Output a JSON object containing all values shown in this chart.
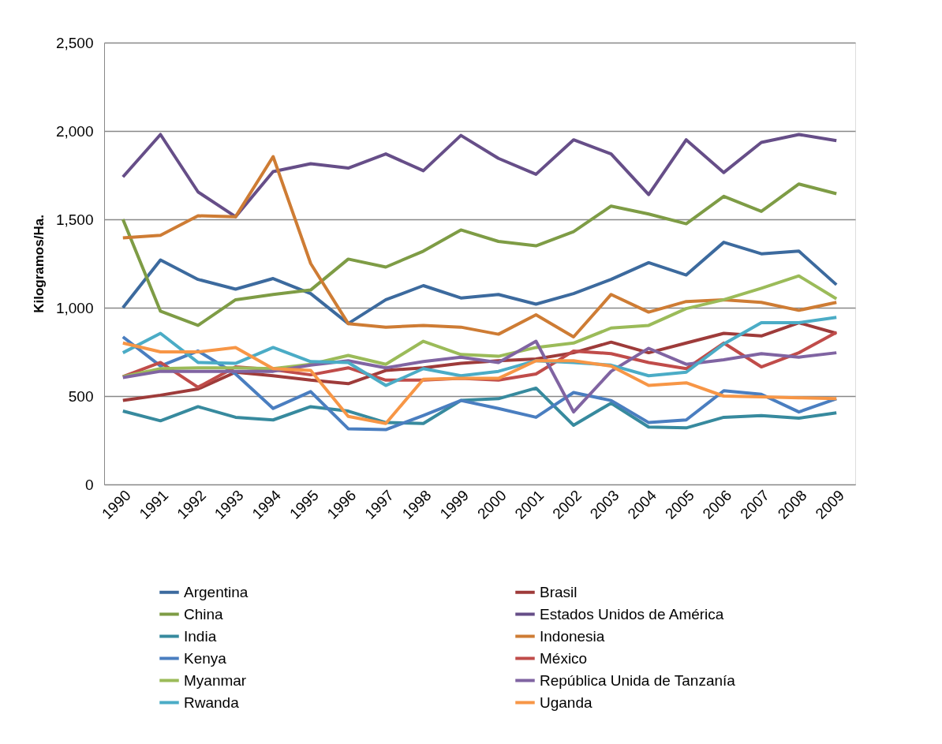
{
  "chart_data": {
    "type": "line",
    "ylabel": "Kilogramos/Ha.",
    "categories": [
      "1990",
      "1991",
      "1992",
      "1993",
      "1994",
      "1995",
      "1996",
      "1997",
      "1998",
      "1999",
      "2000",
      "2001",
      "2002",
      "2003",
      "2004",
      "2005",
      "2006",
      "2007",
      "2008",
      "2009"
    ],
    "ylim": [
      0,
      2500
    ],
    "yticks": [
      {
        "value": 0,
        "label": "0"
      },
      {
        "value": 500,
        "label": "500"
      },
      {
        "value": 1000,
        "label": "1,000"
      },
      {
        "value": 1500,
        "label": "1,500"
      },
      {
        "value": 2000,
        "label": "2,000"
      },
      {
        "value": 2500,
        "label": "2,500"
      }
    ],
    "grid": "y",
    "legend": "bottom",
    "marker": "none",
    "line_style": "solid",
    "series": [
      {
        "name": "Argentina",
        "color": "#3c6a9e",
        "values": [
          1000,
          1270,
          1160,
          1105,
          1165,
          1080,
          910,
          1045,
          1125,
          1055,
          1075,
          1020,
          1080,
          1160,
          1255,
          1185,
          1370,
          1305,
          1320,
          1130
        ]
      },
      {
        "name": "Brasil",
        "color": "#9e3b3a",
        "values": [
          475,
          505,
          540,
          635,
          615,
          590,
          570,
          645,
          660,
          685,
          700,
          710,
          745,
          805,
          745,
          800,
          855,
          840,
          915,
          855
        ]
      },
      {
        "name": "China",
        "color": "#7e9c45",
        "values": [
          1500,
          980,
          900,
          1045,
          1075,
          1100,
          1275,
          1230,
          1320,
          1440,
          1375,
          1350,
          1430,
          1575,
          1530,
          1475,
          1630,
          1545,
          1700,
          1645
        ]
      },
      {
        "name": "Estados Unidos de América",
        "color": "#664e88",
        "values": [
          1740,
          1980,
          1655,
          1515,
          1770,
          1815,
          1790,
          1870,
          1775,
          1975,
          1845,
          1755,
          1950,
          1870,
          1640,
          1950,
          1765,
          1935,
          1980,
          1945
        ]
      },
      {
        "name": "India",
        "color": "#378a9e",
        "values": [
          415,
          360,
          440,
          380,
          365,
          440,
          415,
          350,
          345,
          475,
          485,
          545,
          335,
          460,
          325,
          320,
          380,
          390,
          375,
          405
        ]
      },
      {
        "name": "Indonesia",
        "color": "#ce7c34",
        "values": [
          1395,
          1410,
          1520,
          1515,
          1855,
          1250,
          910,
          890,
          900,
          890,
          850,
          960,
          835,
          1075,
          975,
          1035,
          1045,
          1030,
          985,
          1030
        ]
      },
      {
        "name": "Kenya",
        "color": "#4a7ec0",
        "values": [
          835,
          670,
          755,
          625,
          430,
          525,
          315,
          310,
          390,
          475,
          430,
          380,
          520,
          475,
          350,
          365,
          530,
          510,
          410,
          485
        ]
      },
      {
        "name": "México",
        "color": "#c04c4a",
        "values": [
          610,
          690,
          550,
          665,
          650,
          620,
          660,
          590,
          590,
          600,
          590,
          625,
          755,
          740,
          690,
          655,
          800,
          665,
          745,
          860
        ]
      },
      {
        "name": "Myanmar",
        "color": "#9bbb59",
        "values": [
          610,
          655,
          660,
          660,
          655,
          680,
          730,
          680,
          810,
          735,
          725,
          775,
          800,
          885,
          900,
          995,
          1045,
          1110,
          1180,
          1050
        ]
      },
      {
        "name": "República Unida de Tanzanía",
        "color": "#8064a2",
        "values": [
          605,
          640,
          640,
          640,
          640,
          675,
          700,
          660,
          695,
          720,
          690,
          810,
          410,
          640,
          770,
          680,
          705,
          740,
          720,
          745
        ]
      },
      {
        "name": "Rwanda",
        "color": "#4bacc6",
        "values": [
          745,
          855,
          690,
          685,
          775,
          695,
          690,
          560,
          655,
          615,
          640,
          700,
          690,
          675,
          615,
          635,
          795,
          915,
          915,
          945
        ]
      },
      {
        "name": "Uganda",
        "color": "#f79646",
        "values": [
          800,
          750,
          750,
          775,
          655,
          645,
          385,
          345,
          595,
          600,
          600,
          700,
          700,
          670,
          560,
          575,
          500,
          495,
          490,
          485
        ]
      }
    ]
  }
}
